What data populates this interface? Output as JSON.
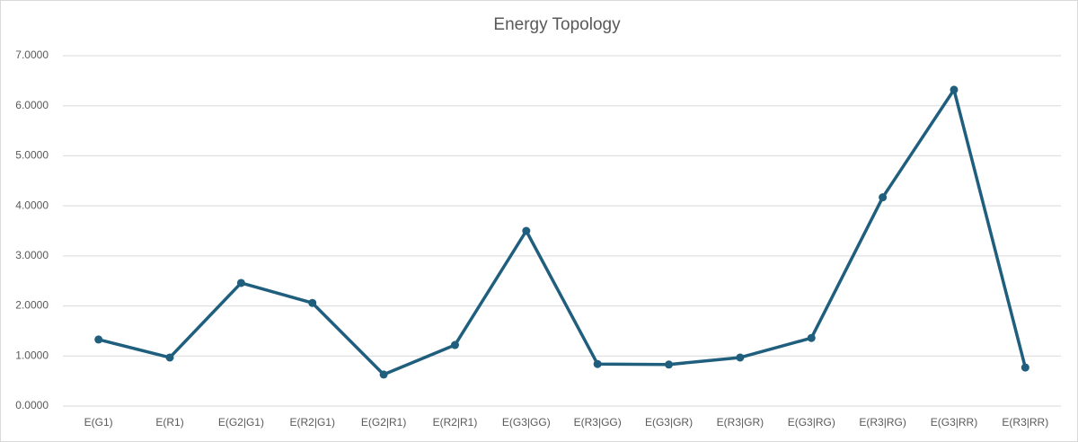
{
  "chart_data": {
    "type": "line",
    "title": "Energy Topology",
    "categories": [
      "E(G1)",
      "E(R1)",
      "E(G2|G1)",
      "E(R2|G1)",
      "E(G2|R1)",
      "E(R2|R1)",
      "E(G3|GG)",
      "E(R3|GG)",
      "E(G3|GR)",
      "E(R3|GR)",
      "E(G3|RG)",
      "E(R3|RG)",
      "E(G3|RR)",
      "E(R3|RR)"
    ],
    "values": [
      1.33,
      0.97,
      2.46,
      2.06,
      0.63,
      1.22,
      3.5,
      0.84,
      0.83,
      0.97,
      1.36,
      4.17,
      6.32,
      0.77
    ],
    "color": "#1f5f7d",
    "ylim": [
      0,
      7
    ],
    "yticks": [
      {
        "value": 0,
        "label": "0.0000"
      },
      {
        "value": 1,
        "label": "1.0000"
      },
      {
        "value": 2,
        "label": "2.0000"
      },
      {
        "value": 3,
        "label": "3.0000"
      },
      {
        "value": 4,
        "label": "4.0000"
      },
      {
        "value": 5,
        "label": "5.0000"
      },
      {
        "value": 6,
        "label": "6.0000"
      },
      {
        "value": 7,
        "label": "7.0000"
      }
    ],
    "grid": true
  }
}
